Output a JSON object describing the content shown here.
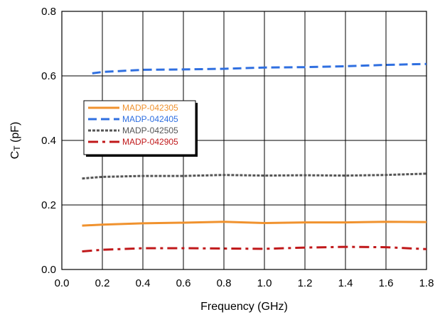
{
  "chart_data": {
    "type": "line",
    "xlabel": "Frequency (GHz)",
    "ylabel_main": "C",
    "ylabel_sub": "T",
    "ylabel_unit": " (pF)",
    "xlim": [
      0,
      1.8
    ],
    "ylim": [
      0,
      0.8
    ],
    "xticks": [
      "0.0",
      "0.2",
      "0.4",
      "0.6",
      "0.8",
      "1.0",
      "1.2",
      "1.4",
      "1.6",
      "1.8"
    ],
    "yticks": [
      "0.0",
      "0.2",
      "0.4",
      "0.6",
      "0.8"
    ],
    "grid": true,
    "legend_position": "left-middle",
    "series": [
      {
        "name": "MADP-042305",
        "color": "#f0922e",
        "dash": "solid",
        "x": [
          0.1,
          0.2,
          0.4,
          0.6,
          0.8,
          1.0,
          1.2,
          1.4,
          1.6,
          1.8
        ],
        "y": [
          0.136,
          0.139,
          0.143,
          0.145,
          0.148,
          0.144,
          0.146,
          0.146,
          0.148,
          0.147
        ]
      },
      {
        "name": "MADP-042405",
        "color": "#2f6fe0",
        "dash": "dash",
        "x": [
          0.15,
          0.2,
          0.4,
          0.6,
          0.8,
          1.0,
          1.2,
          1.4,
          1.6,
          1.8
        ],
        "y": [
          0.608,
          0.612,
          0.619,
          0.62,
          0.622,
          0.626,
          0.627,
          0.63,
          0.634,
          0.637
        ]
      },
      {
        "name": "MADP-042505",
        "color": "#555555",
        "dash": "dot",
        "x": [
          0.1,
          0.2,
          0.4,
          0.6,
          0.8,
          1.0,
          1.2,
          1.4,
          1.6,
          1.8
        ],
        "y": [
          0.282,
          0.287,
          0.29,
          0.29,
          0.293,
          0.291,
          0.292,
          0.291,
          0.293,
          0.297
        ]
      },
      {
        "name": "MADP-042905",
        "color": "#c0181a",
        "dash": "dashdot",
        "x": [
          0.1,
          0.2,
          0.4,
          0.6,
          0.8,
          1.0,
          1.2,
          1.4,
          1.6,
          1.8
        ],
        "y": [
          0.056,
          0.061,
          0.066,
          0.066,
          0.065,
          0.064,
          0.068,
          0.07,
          0.069,
          0.063
        ]
      }
    ]
  }
}
